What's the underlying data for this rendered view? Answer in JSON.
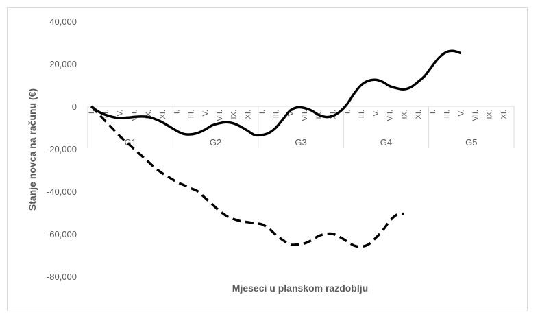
{
  "chart_data": {
    "type": "line",
    "title": "",
    "xlabel": "Mjeseci u planskom razdoblju",
    "ylabel": "Stanje novca na računu (€)",
    "ylim": [
      -80000,
      40000
    ],
    "y_ticks": [
      40000,
      20000,
      0,
      -20000,
      -40000,
      -60000,
      -80000
    ],
    "y_tick_labels": [
      "40,000",
      "20,000",
      "0",
      "-20,000",
      "-40,000",
      "-60,000",
      "-80,000"
    ],
    "groups": [
      "G1",
      "G2",
      "G3",
      "G4",
      "G5"
    ],
    "months_per_group": 12,
    "month_labels": [
      "I.",
      "III.",
      "V.",
      "VII.",
      "IX.",
      "XI."
    ],
    "grid": false,
    "legend": "none",
    "series": [
      {
        "style": "solid",
        "color": "#000000",
        "values": [
          0,
          -2500,
          -4000,
          -5000,
          -5500,
          -5300,
          -5000,
          -4800,
          -5000,
          -6000,
          -7500,
          -9500,
          -11500,
          -13000,
          -13200,
          -12500,
          -11000,
          -9000,
          -8000,
          -7500,
          -8000,
          -9500,
          -11500,
          -13500,
          -13500,
          -12500,
          -10000,
          -6000,
          -2000,
          -500,
          -800,
          -2000,
          -4000,
          -5000,
          -4500,
          -2500,
          1000,
          6000,
          10000,
          12000,
          12500,
          11500,
          9500,
          8500,
          8000,
          9000,
          11500,
          14500,
          19000,
          23000,
          25500,
          26000,
          25000
        ]
      },
      {
        "style": "dashed",
        "color": "#000000",
        "values": [
          0,
          -3500,
          -7000,
          -10500,
          -14000,
          -17000,
          -20000,
          -23000,
          -26000,
          -29000,
          -31500,
          -33500,
          -35500,
          -37000,
          -38500,
          -40000,
          -43000,
          -46000,
          -49000,
          -51500,
          -53000,
          -54000,
          -54500,
          -55000,
          -55500,
          -57500,
          -60500,
          -63000,
          -65000,
          -65000,
          -64500,
          -63000,
          -61000,
          -60000,
          -60000,
          -61500,
          -63500,
          -65500,
          -66000,
          -65000,
          -62000,
          -58500,
          -54000,
          -51000,
          -50500
        ]
      }
    ]
  }
}
